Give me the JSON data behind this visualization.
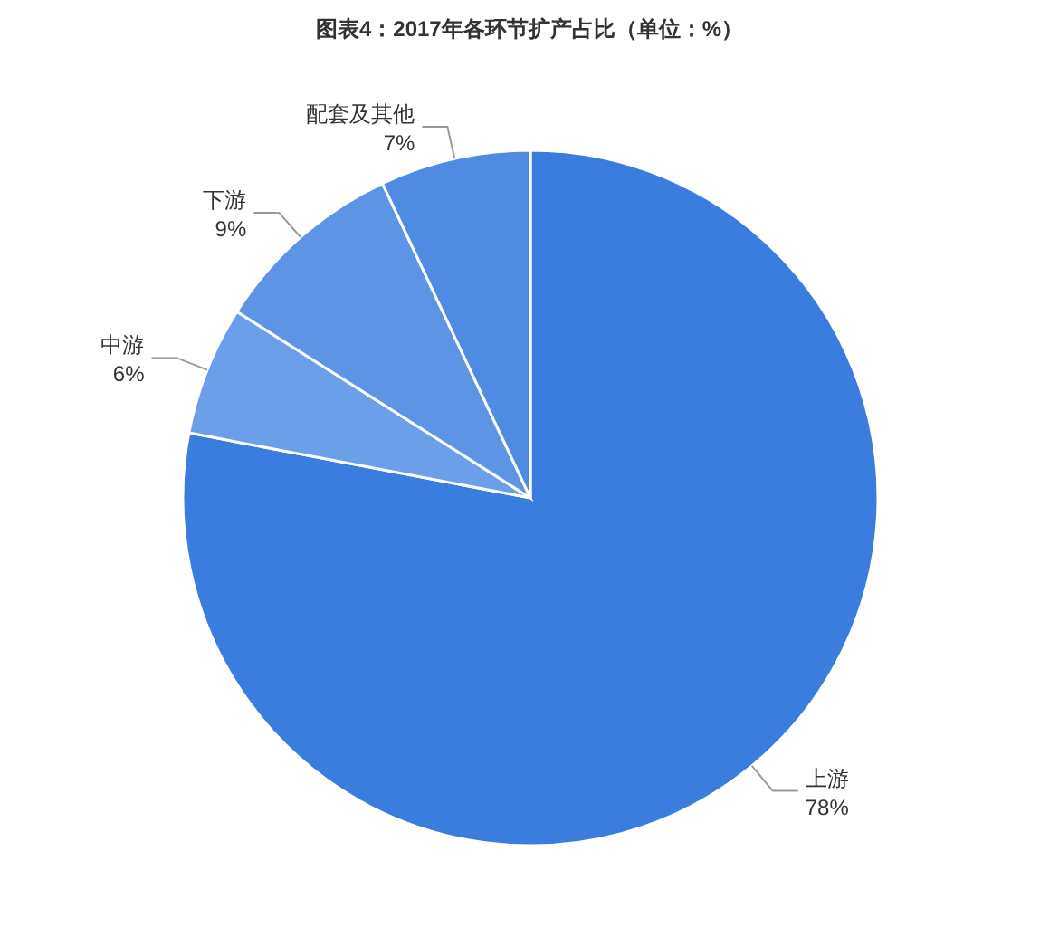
{
  "chart_data": {
    "type": "pie",
    "title": "图表4：2017年各环节扩产占比（单位：%）",
    "categories": [
      "上游",
      "中游",
      "下游",
      "配套及其他"
    ],
    "values": [
      78,
      6,
      9,
      7
    ],
    "colors": [
      "#3a7ddf",
      "#6b9fe9",
      "#5d94e6",
      "#4f8be3"
    ],
    "value_labels": [
      "78%",
      "6%",
      "9%",
      "7%"
    ]
  }
}
